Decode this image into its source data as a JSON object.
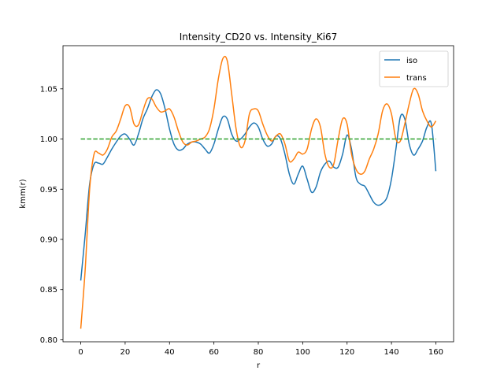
{
  "chart_data": {
    "type": "line",
    "title": "Intensity_CD20 vs. Intensity_Ki67",
    "xlabel": "r",
    "ylabel": "kmm(r)",
    "xlim": [
      -8,
      168
    ],
    "ylim": [
      0.798,
      1.093
    ],
    "xticks": [
      0,
      20,
      40,
      60,
      80,
      100,
      120,
      140,
      160
    ],
    "yticks": [
      0.8,
      0.85,
      0.9,
      0.95,
      1.0,
      1.05
    ],
    "ytick_labels": [
      "0.80",
      "0.85",
      "0.90",
      "0.95",
      "1.00",
      "1.05"
    ],
    "grid": false,
    "legend_position": "top-right",
    "series": [
      {
        "name": "iso",
        "color": "#1f77b4",
        "style": "solid",
        "x": [
          0,
          2,
          4,
          6,
          8,
          10,
          12,
          14,
          16,
          18,
          20,
          22,
          24,
          26,
          28,
          30,
          32,
          34,
          36,
          38,
          40,
          42,
          44,
          46,
          48,
          50,
          52,
          54,
          56,
          58,
          60,
          62,
          64,
          66,
          68,
          70,
          72,
          74,
          76,
          78,
          80,
          82,
          84,
          86,
          88,
          90,
          92,
          94,
          96,
          98,
          100,
          102,
          104,
          106,
          108,
          110,
          112,
          114,
          116,
          118,
          120,
          122,
          124,
          126,
          128,
          130,
          132,
          134,
          136,
          138,
          140,
          142,
          144,
          146,
          148,
          150,
          152,
          154,
          156,
          158,
          160
        ],
        "y": [
          0.859,
          0.905,
          0.955,
          0.975,
          0.976,
          0.975,
          0.982,
          0.99,
          0.997,
          1.003,
          1.005,
          1.0,
          0.994,
          1.005,
          1.02,
          1.03,
          1.042,
          1.049,
          1.045,
          1.03,
          1.01,
          0.995,
          0.989,
          0.99,
          0.995,
          0.997,
          0.997,
          0.995,
          0.99,
          0.986,
          0.995,
          1.01,
          1.022,
          1.02,
          1.005,
          0.998,
          1.0,
          1.005,
          1.012,
          1.016,
          1.012,
          1.0,
          0.993,
          0.995,
          1.003,
          1.0,
          0.985,
          0.965,
          0.955,
          0.965,
          0.973,
          0.96,
          0.947,
          0.952,
          0.967,
          0.975,
          0.978,
          0.972,
          0.972,
          0.985,
          1.004,
          0.99,
          0.962,
          0.955,
          0.953,
          0.945,
          0.937,
          0.934,
          0.936,
          0.942,
          0.96,
          0.99,
          1.022,
          1.02,
          0.995,
          0.984,
          0.99,
          0.998,
          1.012,
          1.015,
          0.968
        ]
      },
      {
        "name": "trans",
        "color": "#ff7f0e",
        "style": "solid",
        "x": [
          0,
          2,
          4,
          6,
          8,
          10,
          12,
          14,
          16,
          18,
          20,
          22,
          24,
          26,
          28,
          30,
          32,
          34,
          36,
          38,
          40,
          42,
          44,
          46,
          48,
          50,
          52,
          54,
          56,
          58,
          60,
          62,
          64,
          66,
          68,
          70,
          72,
          74,
          76,
          78,
          80,
          82,
          84,
          86,
          88,
          90,
          92,
          94,
          96,
          98,
          100,
          102,
          104,
          106,
          108,
          110,
          112,
          114,
          116,
          118,
          120,
          122,
          124,
          126,
          128,
          130,
          132,
          134,
          136,
          138,
          140,
          142,
          144,
          146,
          148,
          150,
          152,
          154,
          156,
          158,
          160
        ],
        "y": [
          0.811,
          0.87,
          0.95,
          0.985,
          0.986,
          0.984,
          0.99,
          1.002,
          1.008,
          1.02,
          1.033,
          1.032,
          1.015,
          1.014,
          1.028,
          1.04,
          1.04,
          1.032,
          1.027,
          1.028,
          1.03,
          1.022,
          1.008,
          0.997,
          0.994,
          0.997,
          0.998,
          1.0,
          1.002,
          1.01,
          1.03,
          1.06,
          1.08,
          1.078,
          1.045,
          1.01,
          0.992,
          0.998,
          1.025,
          1.03,
          1.028,
          1.015,
          1.004,
          0.998,
          1.003,
          1.005,
          0.995,
          0.978,
          0.98,
          0.987,
          0.985,
          0.99,
          1.01,
          1.02,
          1.012,
          0.985,
          0.972,
          0.975,
          1.0,
          1.02,
          1.015,
          0.985,
          0.97,
          0.965,
          0.968,
          0.98,
          0.99,
          1.005,
          1.028,
          1.035,
          1.025,
          1.0,
          0.998,
          1.015,
          1.035,
          1.05,
          1.045,
          1.028,
          1.018,
          1.012,
          1.018
        ]
      },
      {
        "name": "",
        "color": "#2ca02c",
        "style": "dashed",
        "x": [
          0,
          160
        ],
        "y": [
          1.0,
          1.0
        ]
      }
    ]
  }
}
